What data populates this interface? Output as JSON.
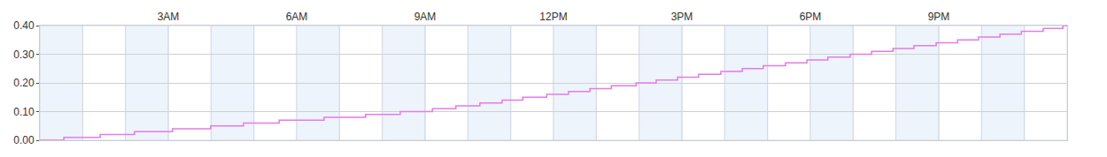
{
  "chart_data": {
    "type": "line",
    "line_style": "step",
    "color": "#e67ae6",
    "grid": true,
    "x": [
      0,
      0.56,
      1.41,
      2.21,
      3.1,
      3.99,
      4.76,
      5.59,
      6.64,
      7.61,
      8.42,
      9.17,
      9.72,
      10.28,
      10.8,
      11.28,
      11.84,
      12.35,
      12.85,
      13.35,
      13.93,
      14.4,
      14.9,
      15.39,
      15.91,
      16.41,
      16.9,
      17.42,
      17.92,
      18.41,
      18.93,
      19.43,
      19.93,
      20.42,
      20.94,
      21.44,
      21.93,
      22.43,
      22.93,
      23.44,
      23.9,
      24
    ],
    "values": [
      0,
      0.01,
      0.02,
      0.03,
      0.04,
      0.05,
      0.06,
      0.07,
      0.08,
      0.09,
      0.1,
      0.11,
      0.12,
      0.13,
      0.14,
      0.15,
      0.16,
      0.17,
      0.18,
      0.19,
      0.2,
      0.21,
      0.22,
      0.23,
      0.24,
      0.25,
      0.26,
      0.27,
      0.28,
      0.29,
      0.3,
      0.31,
      0.32,
      0.33,
      0.34,
      0.35,
      0.36,
      0.37,
      0.38,
      0.39,
      0.4,
      0.4
    ],
    "xlim": [
      0,
      24
    ],
    "xticks": [
      {
        "value": 3,
        "label": "3AM"
      },
      {
        "value": 6,
        "label": "6AM"
      },
      {
        "value": 9,
        "label": "9AM"
      },
      {
        "value": 12,
        "label": "12PM"
      },
      {
        "value": 15,
        "label": "3PM"
      },
      {
        "value": 18,
        "label": "6PM"
      },
      {
        "value": 21,
        "label": "9PM"
      }
    ],
    "ylim": [
      0,
      0.4
    ],
    "yticks": [
      {
        "value": 0,
        "label": "0.00"
      },
      {
        "value": 0.1,
        "label": "0.10"
      },
      {
        "value": 0.2,
        "label": "0.20"
      },
      {
        "value": 0.3,
        "label": "0.30"
      },
      {
        "value": 0.4,
        "label": "0.40"
      }
    ]
  }
}
